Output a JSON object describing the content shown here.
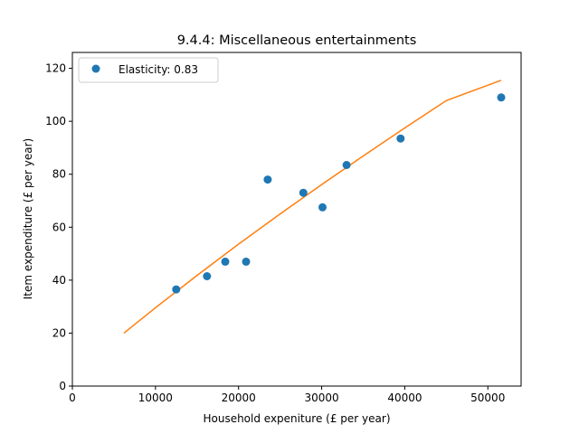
{
  "chart_data": {
    "type": "scatter",
    "title": "9.4.4: Miscellaneous entertainments",
    "xlabel": "Household expeniture (£ per year)",
    "ylabel": "Item expenditure (£ per year)",
    "xlim": [
      0,
      54000
    ],
    "ylim": [
      0,
      126
    ],
    "xticks": [
      0,
      10000,
      20000,
      30000,
      40000,
      50000
    ],
    "yticks": [
      0,
      20,
      40,
      60,
      80,
      100,
      120
    ],
    "grid": false,
    "legend_position": "top-left",
    "series": [
      {
        "name": "Elasticity: 0.83",
        "kind": "scatter",
        "color": "#1f77b4",
        "x": [
          12500,
          16200,
          18400,
          20900,
          23500,
          27800,
          30100,
          33000,
          39500,
          51600
        ],
        "y": [
          36.5,
          41.5,
          47,
          47,
          78,
          73,
          67.5,
          83.5,
          93.5,
          109
        ]
      },
      {
        "kind": "line",
        "color": "#ff7f0e",
        "x": [
          6200,
          10000,
          15000,
          20000,
          25000,
          30000,
          35000,
          40000,
          45000,
          51600
        ],
        "y": [
          20,
          29.6,
          41.8,
          53.6,
          65,
          76.1,
          86.9,
          97.5,
          107.8,
          115.5
        ]
      }
    ]
  }
}
